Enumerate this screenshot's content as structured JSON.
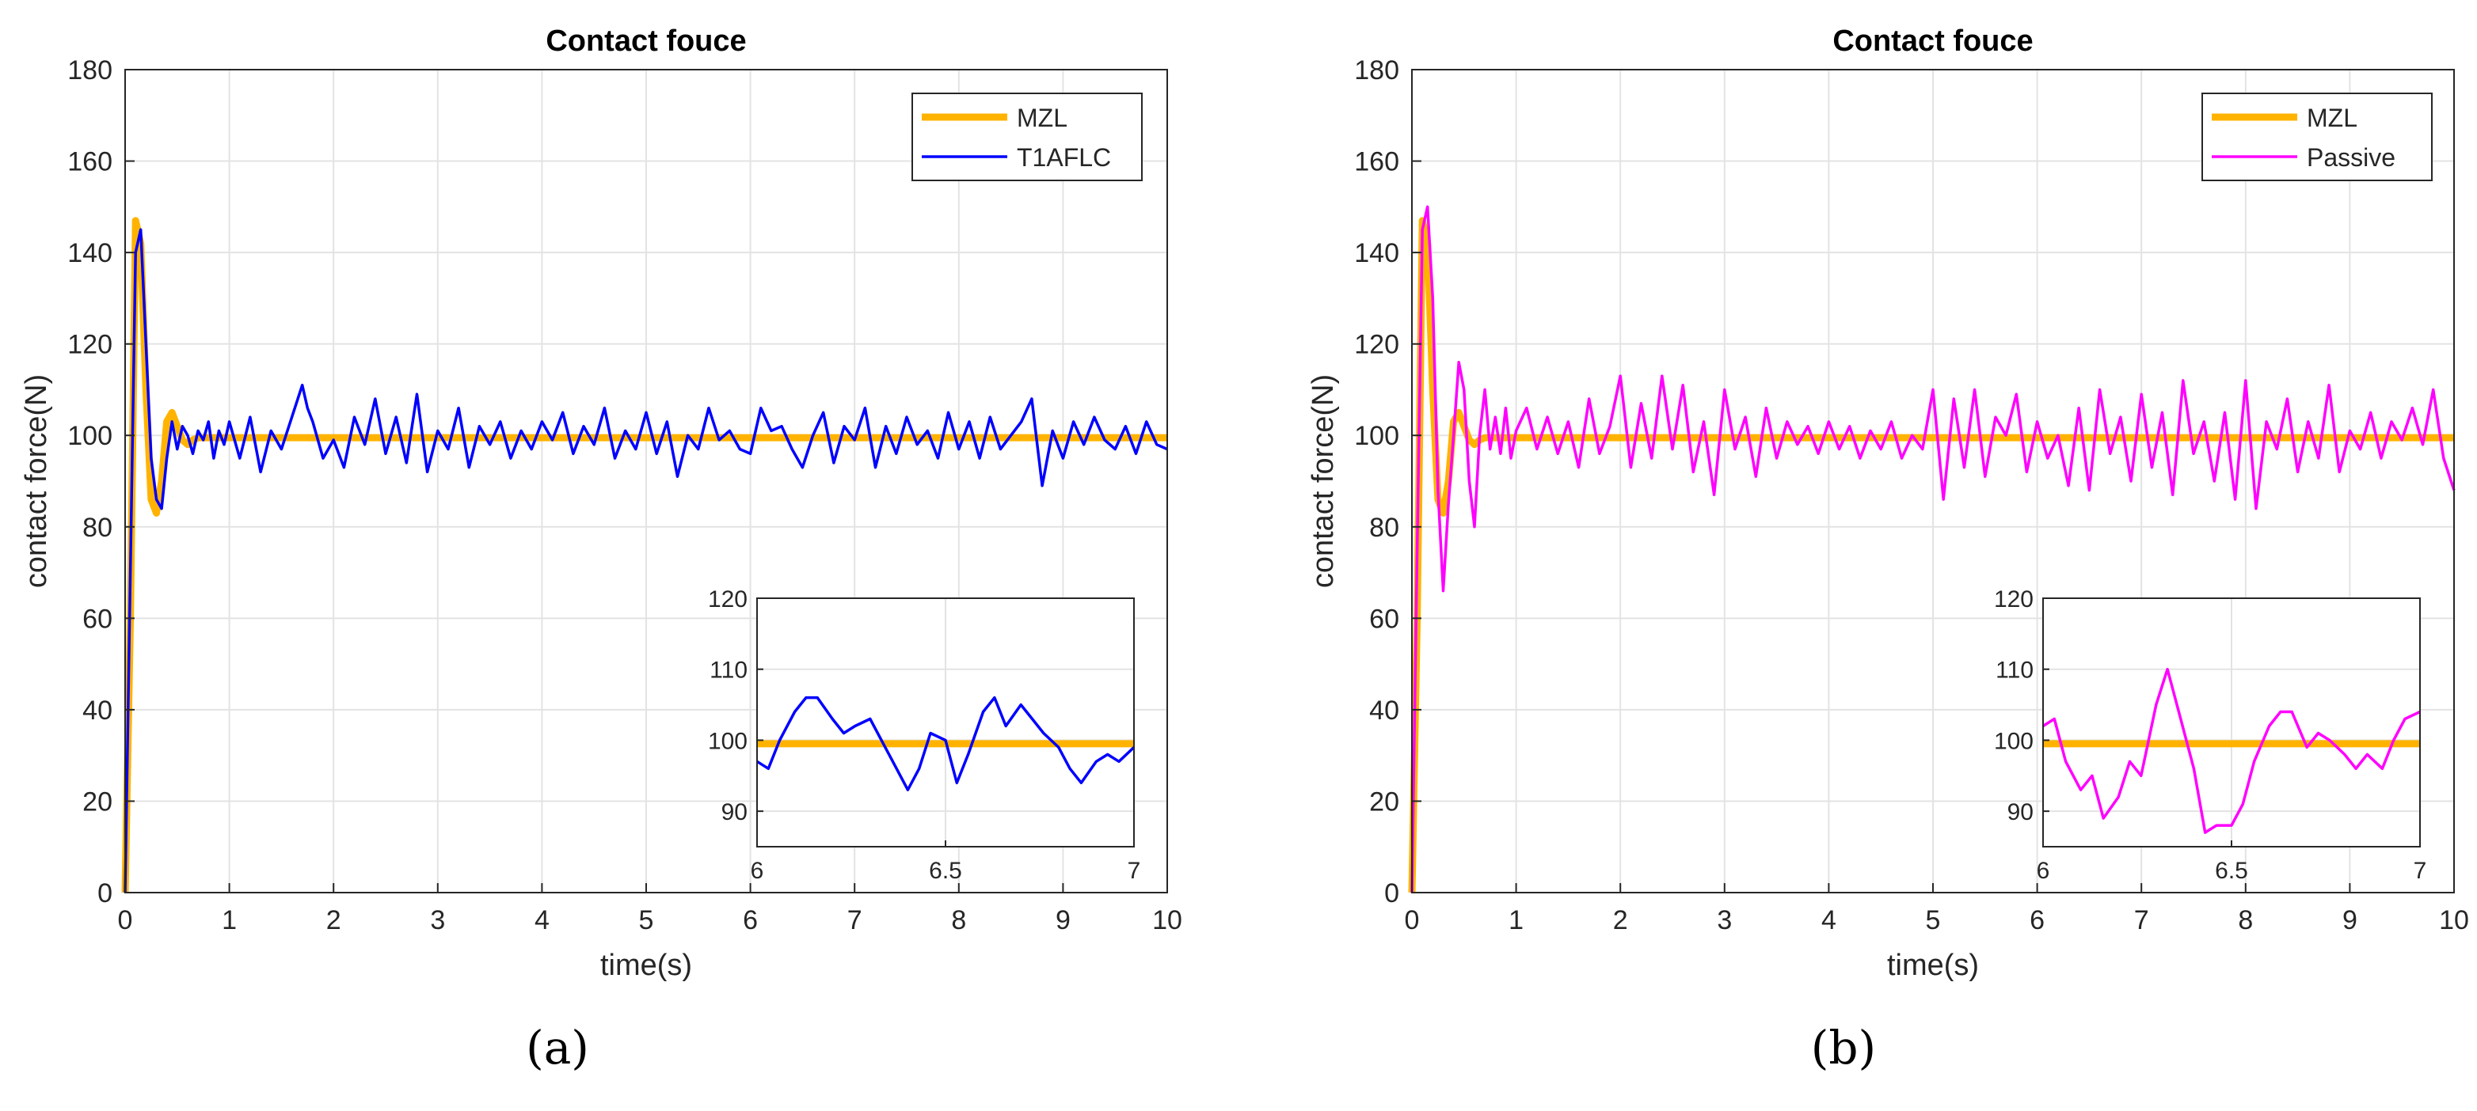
{
  "colors": {
    "mzl": "#FFB300",
    "t1aflc": "#0000FF",
    "passive": "#FF00FF",
    "grid": "#E3E3E3",
    "axis": "#262626"
  },
  "chart_data": [
    {
      "panel_label": "(a)",
      "type": "line",
      "title": "Contact fouce",
      "xlabel": "time(s)",
      "ylabel": "contact force(N)",
      "xlim": [
        0,
        10
      ],
      "ylim": [
        0,
        180
      ],
      "xticks": [
        0,
        1,
        2,
        3,
        4,
        5,
        6,
        7,
        8,
        9,
        10
      ],
      "yticks": [
        0,
        20,
        40,
        60,
        80,
        100,
        120,
        140,
        160,
        180
      ],
      "grid": true,
      "legend": {
        "position": "top-right",
        "entries": [
          "MZL",
          "T1AFLC"
        ]
      },
      "series": [
        {
          "name": "MZL",
          "color": "#FFB300",
          "x": [
            0,
            0.05,
            0.1,
            0.15,
            0.2,
            0.25,
            0.3,
            0.35,
            0.4,
            0.45,
            0.5,
            0.55,
            0.6,
            0.65,
            0.7,
            0.8,
            1,
            10
          ],
          "y": [
            0,
            60,
            147,
            142,
            110,
            86,
            83,
            90,
            103,
            105,
            102,
            99,
            98,
            99,
            99.5,
            99.5,
            99.5,
            99.5
          ]
        },
        {
          "name": "T1AFLC",
          "color": "#0000FF",
          "x": [
            0,
            0.05,
            0.1,
            0.15,
            0.2,
            0.25,
            0.3,
            0.35,
            0.4,
            0.45,
            0.5,
            0.55,
            0.6,
            0.65,
            0.7,
            0.75,
            0.8,
            0.85,
            0.9,
            0.95,
            1,
            1.1,
            1.2,
            1.3,
            1.4,
            1.5,
            1.6,
            1.7,
            1.75,
            1.8,
            1.9,
            2.0,
            2.1,
            2.2,
            2.3,
            2.4,
            2.5,
            2.6,
            2.7,
            2.8,
            2.9,
            3.0,
            3.1,
            3.2,
            3.3,
            3.4,
            3.5,
            3.6,
            3.7,
            3.8,
            3.9,
            4.0,
            4.1,
            4.2,
            4.3,
            4.4,
            4.5,
            4.6,
            4.7,
            4.8,
            4.9,
            5.0,
            5.1,
            5.2,
            5.3,
            5.4,
            5.5,
            5.6,
            5.7,
            5.8,
            5.9,
            6.0,
            6.1,
            6.2,
            6.3,
            6.4,
            6.5,
            6.6,
            6.7,
            6.8,
            6.9,
            7.0,
            7.1,
            7.2,
            7.3,
            7.4,
            7.5,
            7.6,
            7.7,
            7.8,
            7.9,
            8.0,
            8.1,
            8.2,
            8.3,
            8.4,
            8.5,
            8.6,
            8.7,
            8.8,
            8.9,
            9.0,
            9.1,
            9.2,
            9.3,
            9.4,
            9.5,
            9.6,
            9.7,
            9.8,
            9.9,
            10.0
          ],
          "y": [
            0,
            70,
            140,
            145,
            120,
            95,
            86,
            84,
            95,
            103,
            97,
            102,
            100,
            96,
            101,
            99,
            103,
            95,
            101,
            98,
            103,
            95,
            104,
            92,
            101,
            97,
            104,
            111,
            106,
            103,
            95,
            99,
            93,
            104,
            98,
            108,
            96,
            104,
            94,
            109,
            92,
            101,
            97,
            106,
            93,
            102,
            98,
            103,
            95,
            101,
            97,
            103,
            99,
            105,
            96,
            102,
            98,
            106,
            95,
            101,
            97,
            105,
            96,
            103,
            91,
            100,
            97,
            106,
            99,
            101,
            97,
            96,
            106,
            101,
            102,
            97,
            93,
            100,
            105,
            94,
            102,
            99,
            106,
            93,
            102,
            96,
            104,
            98,
            101,
            95,
            105,
            97,
            103,
            95,
            104,
            97,
            100,
            103,
            108,
            89,
            101,
            95,
            103,
            98,
            104,
            99,
            97,
            102,
            96,
            103,
            98,
            97
          ]
        }
      ],
      "inset": {
        "xlim": [
          6,
          7
        ],
        "ylim": [
          85,
          120
        ],
        "xticks": [
          6,
          6.5,
          7
        ],
        "xtick_labels": [
          "6",
          "6.5",
          "7"
        ],
        "yticks": [
          90,
          100,
          110,
          120
        ],
        "mzl_y": 99.5,
        "x": [
          6.0,
          6.03,
          6.06,
          6.1,
          6.13,
          6.16,
          6.2,
          6.23,
          6.26,
          6.3,
          6.33,
          6.36,
          6.4,
          6.43,
          6.46,
          6.5,
          6.53,
          6.56,
          6.6,
          6.63,
          6.66,
          6.7,
          6.73,
          6.76,
          6.8,
          6.83,
          6.86,
          6.9,
          6.93,
          6.96,
          7.0
        ],
        "y": [
          97,
          96,
          100,
          104,
          106,
          106,
          103,
          101,
          102,
          103,
          100,
          97,
          93,
          96,
          101,
          100,
          94,
          98,
          104,
          106,
          102,
          105,
          103,
          101,
          99,
          96,
          94,
          97,
          98,
          97,
          99
        ]
      }
    },
    {
      "panel_label": "(b)",
      "type": "line",
      "title": "Contact fouce",
      "xlabel": "time(s)",
      "ylabel": "contact force(N)",
      "xlim": [
        0,
        10
      ],
      "ylim": [
        0,
        180
      ],
      "xticks": [
        0,
        1,
        2,
        3,
        4,
        5,
        6,
        7,
        8,
        9,
        10
      ],
      "yticks": [
        0,
        20,
        40,
        60,
        80,
        100,
        120,
        140,
        160,
        180
      ],
      "grid": true,
      "legend": {
        "position": "top-right",
        "entries": [
          "MZL",
          "Passive"
        ]
      },
      "series": [
        {
          "name": "MZL",
          "color": "#FFB300",
          "x": [
            0,
            0.05,
            0.1,
            0.15,
            0.2,
            0.25,
            0.3,
            0.35,
            0.4,
            0.45,
            0.5,
            0.55,
            0.6,
            0.65,
            0.7,
            0.8,
            1,
            10
          ],
          "y": [
            0,
            60,
            147,
            142,
            110,
            86,
            83,
            90,
            103,
            105,
            102,
            99,
            98,
            99,
            99.5,
            99.5,
            99.5,
            99.5
          ]
        },
        {
          "name": "Passive",
          "color": "#FF00FF",
          "x": [
            0,
            0.05,
            0.1,
            0.15,
            0.2,
            0.25,
            0.3,
            0.35,
            0.4,
            0.45,
            0.5,
            0.55,
            0.6,
            0.65,
            0.7,
            0.75,
            0.8,
            0.85,
            0.9,
            0.95,
            1,
            1.1,
            1.2,
            1.3,
            1.4,
            1.5,
            1.6,
            1.7,
            1.8,
            1.9,
            2.0,
            2.1,
            2.2,
            2.3,
            2.4,
            2.5,
            2.6,
            2.7,
            2.8,
            2.9,
            3.0,
            3.1,
            3.2,
            3.3,
            3.4,
            3.5,
            3.6,
            3.7,
            3.8,
            3.9,
            4.0,
            4.1,
            4.2,
            4.3,
            4.4,
            4.5,
            4.6,
            4.7,
            4.8,
            4.9,
            5.0,
            5.1,
            5.2,
            5.3,
            5.4,
            5.5,
            5.6,
            5.7,
            5.8,
            5.9,
            6.0,
            6.1,
            6.2,
            6.3,
            6.4,
            6.5,
            6.6,
            6.7,
            6.8,
            6.9,
            7.0,
            7.1,
            7.2,
            7.3,
            7.4,
            7.5,
            7.6,
            7.7,
            7.8,
            7.9,
            8.0,
            8.1,
            8.2,
            8.3,
            8.4,
            8.5,
            8.6,
            8.7,
            8.8,
            8.9,
            9.0,
            9.1,
            9.2,
            9.3,
            9.4,
            9.5,
            9.6,
            9.7,
            9.8,
            9.9,
            10.0
          ],
          "y": [
            0,
            75,
            145,
            150,
            130,
            88,
            66,
            85,
            100,
            116,
            110,
            90,
            80,
            100,
            110,
            97,
            104,
            96,
            106,
            95,
            101,
            106,
            97,
            104,
            96,
            103,
            93,
            108,
            96,
            102,
            113,
            93,
            107,
            95,
            113,
            97,
            111,
            92,
            103,
            87,
            110,
            97,
            104,
            91,
            106,
            95,
            103,
            98,
            102,
            96,
            103,
            97,
            102,
            95,
            101,
            97,
            103,
            95,
            100,
            97,
            110,
            86,
            108,
            93,
            110,
            91,
            104,
            100,
            109,
            92,
            103,
            95,
            100,
            89,
            106,
            88,
            110,
            96,
            104,
            90,
            109,
            93,
            105,
            87,
            112,
            96,
            103,
            90,
            105,
            86,
            112,
            84,
            103,
            97,
            108,
            92,
            103,
            95,
            111,
            92,
            101,
            97,
            105,
            95,
            103,
            99,
            106,
            98,
            110,
            95,
            88
          ]
        }
      ],
      "inset": {
        "xlim": [
          6,
          7
        ],
        "ylim": [
          85,
          120
        ],
        "xticks": [
          6,
          6.5,
          7
        ],
        "xtick_labels": [
          "6",
          "6.5",
          "7"
        ],
        "yticks": [
          90,
          100,
          110,
          120
        ],
        "mzl_y": 99.5,
        "x": [
          6.0,
          6.03,
          6.06,
          6.1,
          6.13,
          6.16,
          6.2,
          6.23,
          6.26,
          6.3,
          6.33,
          6.36,
          6.4,
          6.43,
          6.46,
          6.5,
          6.53,
          6.56,
          6.6,
          6.63,
          6.66,
          6.7,
          6.73,
          6.76,
          6.8,
          6.83,
          6.86,
          6.9,
          6.93,
          6.96,
          7.0
        ],
        "y": [
          102,
          103,
          97,
          93,
          95,
          89,
          92,
          97,
          95,
          105,
          110,
          104,
          96,
          87,
          88,
          88,
          91,
          97,
          102,
          104,
          104,
          99,
          101,
          100,
          98,
          96,
          98,
          96,
          100,
          103,
          104
        ]
      }
    }
  ]
}
